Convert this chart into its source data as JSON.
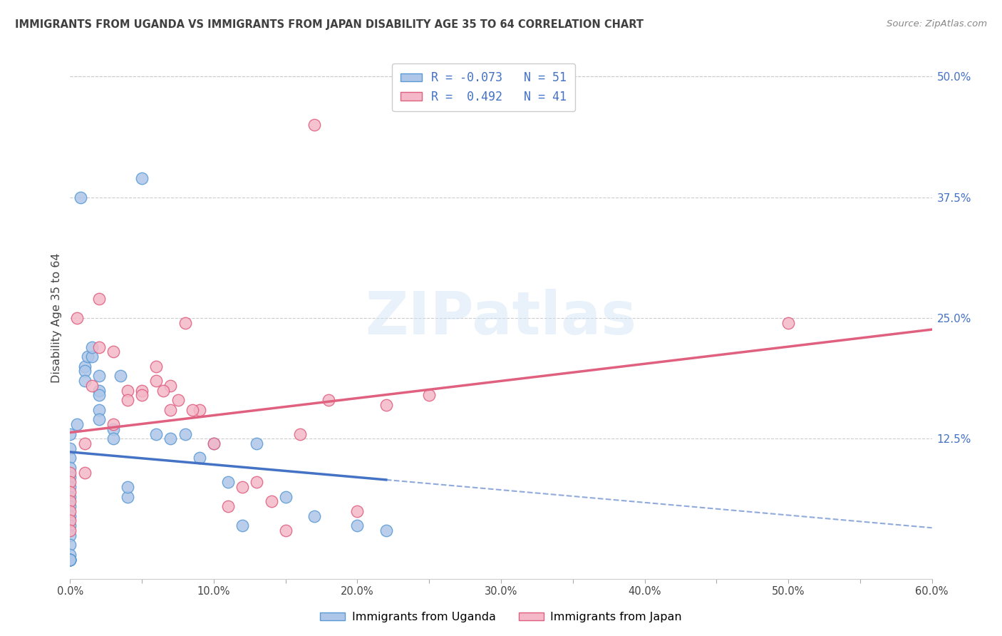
{
  "title": "IMMIGRANTS FROM UGANDA VS IMMIGRANTS FROM JAPAN DISABILITY AGE 35 TO 64 CORRELATION CHART",
  "source": "Source: ZipAtlas.com",
  "ylabel": "Disability Age 35 to 64",
  "xlim": [
    0.0,
    0.6
  ],
  "ylim": [
    -0.02,
    0.52
  ],
  "xtick_labels": [
    "0.0%",
    "",
    "10.0%",
    "",
    "20.0%",
    "",
    "30.0%",
    "",
    "40.0%",
    "",
    "50.0%",
    "",
    "60.0%"
  ],
  "xtick_vals": [
    0.0,
    0.05,
    0.1,
    0.15,
    0.2,
    0.25,
    0.3,
    0.35,
    0.4,
    0.45,
    0.5,
    0.55,
    0.6
  ],
  "ytick_labels_right": [
    "50.0%",
    "37.5%",
    "25.0%",
    "12.5%"
  ],
  "ytick_vals_right": [
    0.5,
    0.375,
    0.25,
    0.125
  ],
  "grid_color": "#cccccc",
  "watermark_text": "ZIPatlas",
  "uganda_color": "#aec6e8",
  "uganda_edge_color": "#5b9bd5",
  "japan_color": "#f4b8c8",
  "japan_edge_color": "#e06080",
  "uganda_R": -0.073,
  "uganda_N": 51,
  "japan_R": 0.492,
  "japan_N": 41,
  "legend_label_uganda": "Immigrants from Uganda",
  "legend_label_japan": "Immigrants from Japan",
  "uganda_x": [
    0.0,
    0.0,
    0.0,
    0.0,
    0.0,
    0.0,
    0.0,
    0.0,
    0.0,
    0.0,
    0.0,
    0.0,
    0.0,
    0.0,
    0.0,
    0.0,
    0.0,
    0.0,
    0.0,
    0.0,
    0.005,
    0.007,
    0.01,
    0.01,
    0.01,
    0.012,
    0.015,
    0.015,
    0.02,
    0.02,
    0.02,
    0.02,
    0.02,
    0.03,
    0.03,
    0.035,
    0.04,
    0.04,
    0.05,
    0.06,
    0.07,
    0.08,
    0.09,
    0.1,
    0.11,
    0.12,
    0.13,
    0.15,
    0.17,
    0.2,
    0.22
  ],
  "uganda_y": [
    0.13,
    0.115,
    0.105,
    0.095,
    0.085,
    0.075,
    0.065,
    0.055,
    0.045,
    0.035,
    0.025,
    0.015,
    0.005,
    0.0,
    0.0,
    0.0,
    0.0,
    0.0,
    0.0,
    0.0,
    0.14,
    0.375,
    0.2,
    0.195,
    0.185,
    0.21,
    0.21,
    0.22,
    0.19,
    0.175,
    0.17,
    0.155,
    0.145,
    0.135,
    0.125,
    0.19,
    0.065,
    0.075,
    0.395,
    0.13,
    0.125,
    0.13,
    0.105,
    0.12,
    0.08,
    0.035,
    0.12,
    0.065,
    0.045,
    0.035,
    0.03
  ],
  "japan_x": [
    0.0,
    0.0,
    0.0,
    0.0,
    0.0,
    0.0,
    0.0,
    0.005,
    0.01,
    0.01,
    0.015,
    0.02,
    0.02,
    0.03,
    0.03,
    0.04,
    0.04,
    0.05,
    0.05,
    0.06,
    0.06,
    0.07,
    0.07,
    0.08,
    0.09,
    0.1,
    0.11,
    0.12,
    0.13,
    0.14,
    0.15,
    0.16,
    0.18,
    0.2,
    0.22,
    0.25,
    0.5,
    0.065,
    0.075,
    0.085,
    0.17
  ],
  "japan_y": [
    0.09,
    0.08,
    0.07,
    0.06,
    0.05,
    0.04,
    0.03,
    0.25,
    0.12,
    0.09,
    0.18,
    0.27,
    0.22,
    0.14,
    0.215,
    0.175,
    0.165,
    0.175,
    0.17,
    0.2,
    0.185,
    0.18,
    0.155,
    0.245,
    0.155,
    0.12,
    0.055,
    0.075,
    0.08,
    0.06,
    0.03,
    0.13,
    0.165,
    0.05,
    0.16,
    0.17,
    0.245,
    0.175,
    0.165,
    0.155,
    0.45
  ],
  "uganda_line_color": "#4472c4",
  "japan_line_color": "#e06080",
  "background_color": "#ffffff",
  "text_color_blue": "#4472c4",
  "text_color_title": "#404040"
}
